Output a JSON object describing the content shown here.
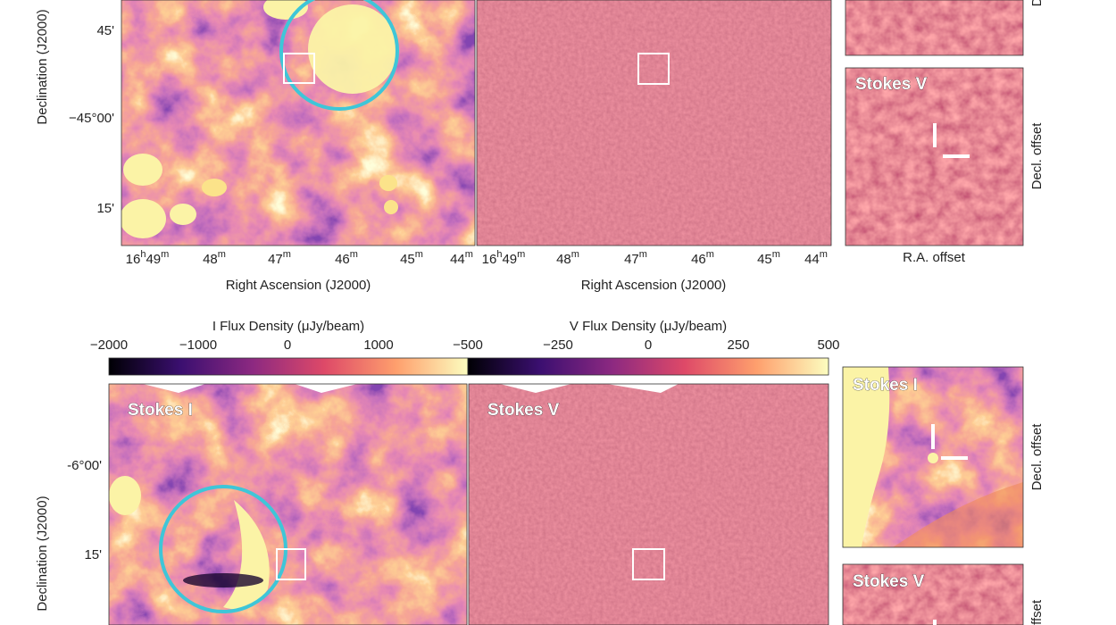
{
  "top": {
    "left_panel": {
      "y_axis_label": "Declination (J2000)",
      "y_ticks": [
        "45'",
        "−45°00'",
        "15'"
      ],
      "x_ticks": [
        [
          "16",
          "h",
          "49",
          "m"
        ],
        [
          "48",
          "m"
        ],
        [
          "47",
          "m"
        ],
        [
          "46",
          "m"
        ],
        [
          "45",
          "m"
        ],
        [
          "44",
          "m"
        ]
      ],
      "x_axis_label": "Right Ascension (J2000)"
    },
    "middle_panel": {
      "x_ticks": [
        [
          "16",
          "h",
          "49",
          "m"
        ],
        [
          "48",
          "m"
        ],
        [
          "47",
          "m"
        ],
        [
          "46",
          "m"
        ],
        [
          "45",
          "m"
        ],
        [
          "44",
          "m"
        ]
      ],
      "x_axis_label": "Right Ascension (J2000)"
    },
    "inset_top": {
      "y_axis_label": "Decl. offset"
    },
    "inset_bottom": {
      "label": "Stokes V",
      "y_axis_label": "Decl. offset",
      "x_axis_label": "R.A. offset"
    }
  },
  "colorbars": [
    {
      "title": "I Flux Density (μJy/beam)",
      "ticks": [
        "−2000",
        "−1000",
        "0",
        "1000"
      ]
    },
    {
      "title": "V Flux Density (μJy/beam)",
      "ticks": [
        "−500",
        "−250",
        "0",
        "250",
        "500"
      ]
    }
  ],
  "bottom": {
    "left_panel": {
      "label": "Stokes I",
      "y_axis_label": "Declination (J2000)",
      "y_ticks": [
        "-6°00'",
        "15'"
      ]
    },
    "middle_panel": {
      "label": "Stokes V"
    },
    "inset_top": {
      "label": "Stokes I",
      "y_axis_label": "Decl. offset"
    },
    "inset_bottom": {
      "label": "Stokes V",
      "y_axis_label": "offset"
    }
  }
}
